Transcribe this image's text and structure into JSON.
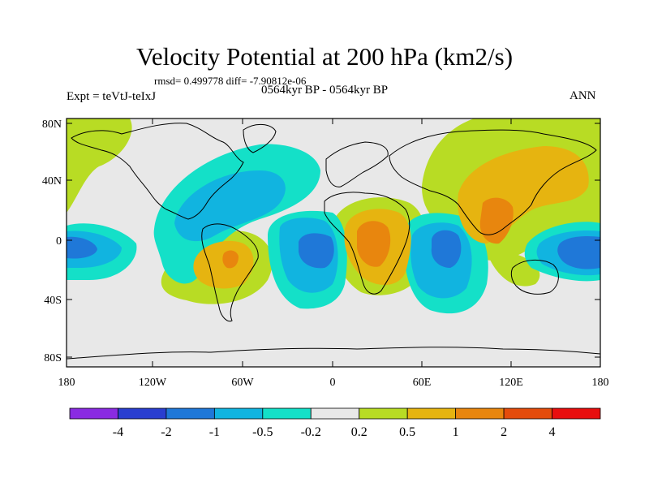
{
  "header": {
    "title": "Velocity Potential at 200 hPa (km2/s)",
    "stats": "rmsd= 0.499778 diff= -7.90812e-06",
    "period": "0564kyr BP - 0564kyr BP",
    "experiment": "Expt = teVtJ-teIxJ",
    "season": "ANN"
  },
  "map": {
    "projection": "cylindrical equidistant",
    "lat_labels": [
      "80N",
      "40N",
      "0",
      "40S",
      "80S"
    ],
    "lon_labels": [
      "180",
      "120W",
      "60W",
      "0",
      "60E",
      "120E",
      "180"
    ]
  },
  "colorbar": {
    "labels": [
      "-4",
      "-2",
      "-1",
      "-0.5",
      "-0.2",
      "0.2",
      "0.5",
      "1",
      "2",
      "4"
    ],
    "colors": [
      "#8a2be2",
      "#2a3ed0",
      "#1f78d8",
      "#11b4e0",
      "#14e0c8",
      "#e8e8e8",
      "#b8dc24",
      "#e6b410",
      "#e8860e",
      "#e44c0c",
      "#e80e0e"
    ]
  }
}
